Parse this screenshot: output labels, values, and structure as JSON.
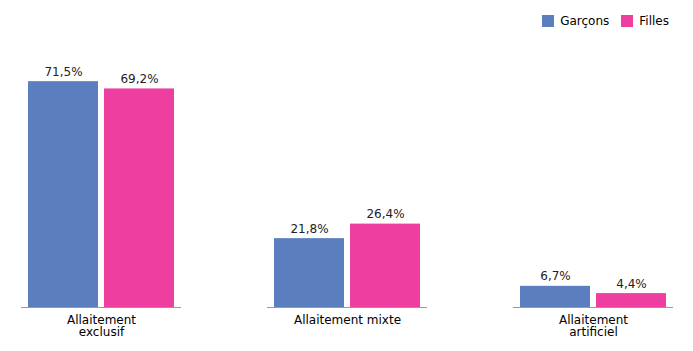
{
  "chart_data": {
    "type": "bar",
    "categories": [
      "Allaitement\nexclusif",
      "Allaitement mixte",
      "Allaitement\nartificiel"
    ],
    "series": [
      {
        "name": "Garçons",
        "color": "#5B7FBE",
        "values": [
          71.5,
          21.8,
          6.7
        ],
        "value_labels": [
          "71,5%",
          "21,8%",
          "6,7%"
        ]
      },
      {
        "name": "Filles",
        "color": "#EE3FA0",
        "values": [
          69.2,
          26.4,
          4.4
        ],
        "value_labels": [
          "69,2%",
          "26,4%",
          "4,4%"
        ]
      }
    ],
    "ylim": [
      0,
      82
    ],
    "grid": false,
    "legend": "upper right",
    "data_labels": true,
    "tick_labels": "x"
  }
}
